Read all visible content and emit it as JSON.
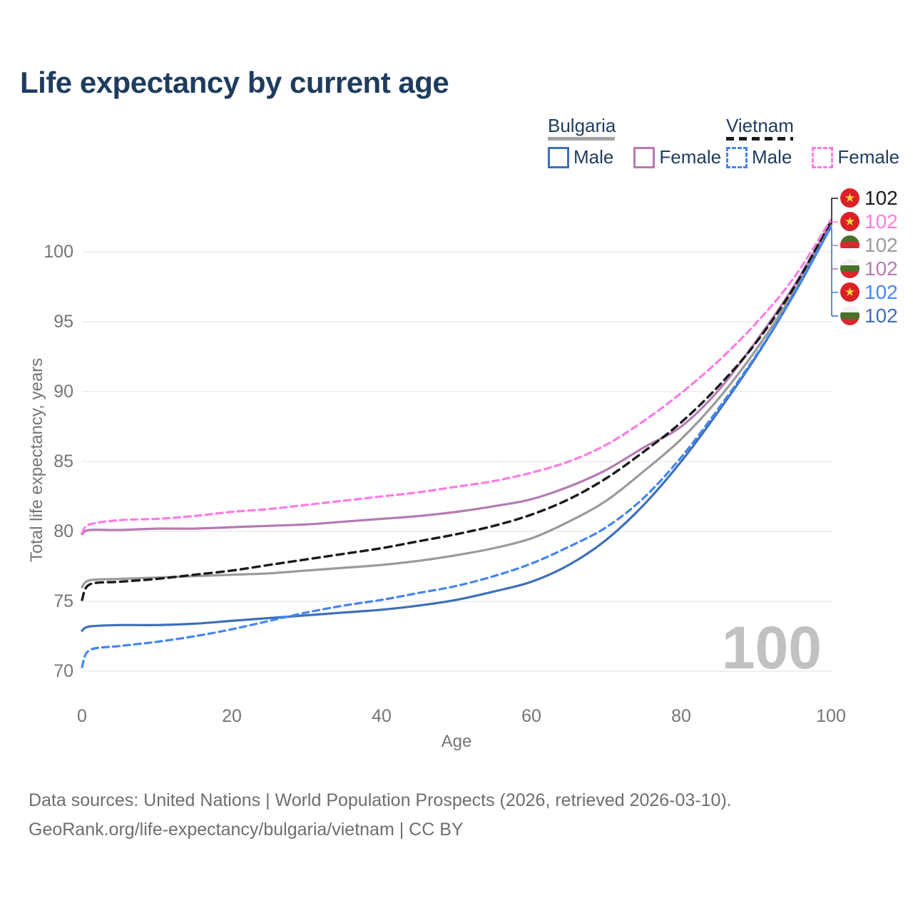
{
  "title": "Life expectancy by current age",
  "legend": {
    "groups": [
      {
        "country": "Bulgaria",
        "line_style": "solid",
        "items": [
          {
            "label": "Male",
            "color": "#3e70b7"
          },
          {
            "label": "Female",
            "color": "#b57ab4"
          }
        ]
      },
      {
        "country": "Vietnam",
        "line_style": "dashed",
        "items": [
          {
            "label": "Male",
            "color": "#4486f2"
          },
          {
            "label": "Female",
            "color": "#ff7ce3"
          }
        ]
      }
    ]
  },
  "end_labels": [
    {
      "country": "Vietnam",
      "value": "102",
      "color": "#1a1a1a"
    },
    {
      "country": "Vietnam",
      "value": "102",
      "color": "#ff7ce3"
    },
    {
      "country": "Bulgaria",
      "value": "102",
      "color": "#9a9a9a"
    },
    {
      "country": "Bulgaria",
      "value": "102",
      "color": "#b57ab4"
    },
    {
      "country": "Vietnam",
      "value": "102",
      "color": "#4486f2"
    },
    {
      "country": "Bulgaria",
      "value": "102",
      "color": "#3e70b7"
    }
  ],
  "watermark": "100",
  "axes": {
    "y_title": "Total life expectancy, years",
    "x_title": "Age"
  },
  "footer": {
    "line1": "Data sources: United Nations | World Population Prospects (2026, retrieved 2026-03-10).",
    "line2": "GeoRank.org/life-expectancy/bulgaria/vietnam | CC BY"
  },
  "chart_data": {
    "type": "line",
    "title": "Life expectancy by current age",
    "xlabel": "Age",
    "ylabel": "Total life expectancy, years",
    "xlim": [
      0,
      100
    ],
    "ylim": [
      69,
      103
    ],
    "x_ticks": [
      0,
      20,
      40,
      60,
      80,
      100
    ],
    "y_ticks": [
      70,
      75,
      80,
      85,
      90,
      95,
      100
    ],
    "grid": "horizontal",
    "legend_position": "top-right",
    "x": [
      0,
      1,
      5,
      10,
      15,
      20,
      25,
      30,
      35,
      40,
      45,
      50,
      55,
      60,
      65,
      70,
      75,
      80,
      85,
      90,
      95,
      100
    ],
    "series": [
      {
        "name": "Bulgaria Total",
        "color": "#9a9a9a",
        "dash": null,
        "width": 3.2,
        "values": [
          76.0,
          76.5,
          76.6,
          76.7,
          76.8,
          76.9,
          77.0,
          77.2,
          77.4,
          77.6,
          77.9,
          78.3,
          78.8,
          79.5,
          80.7,
          82.2,
          84.3,
          86.6,
          89.5,
          93.0,
          97.1,
          101.9
        ]
      },
      {
        "name": "Bulgaria Female",
        "color": "#b57ab4",
        "dash": null,
        "width": 3.2,
        "values": [
          79.8,
          80.1,
          80.1,
          80.2,
          80.2,
          80.3,
          80.4,
          80.5,
          80.7,
          80.9,
          81.1,
          81.4,
          81.8,
          82.3,
          83.2,
          84.4,
          86.0,
          87.5,
          90.1,
          93.6,
          97.5,
          102.1
        ]
      },
      {
        "name": "Bulgaria Male",
        "color": "#3e70b7",
        "dash": null,
        "width": 3.2,
        "values": [
          72.9,
          73.2,
          73.3,
          73.3,
          73.4,
          73.6,
          73.8,
          74.0,
          74.2,
          74.4,
          74.7,
          75.1,
          75.7,
          76.4,
          77.6,
          79.4,
          81.9,
          85.0,
          88.6,
          92.5,
          96.9,
          101.8
        ]
      },
      {
        "name": "Vietnam Total",
        "color": "#1a1a1a",
        "dash": "10 7",
        "width": 3.4,
        "values": [
          75.1,
          76.2,
          76.4,
          76.6,
          76.9,
          77.2,
          77.6,
          78.0,
          78.4,
          78.8,
          79.3,
          79.8,
          80.4,
          81.2,
          82.3,
          83.8,
          85.7,
          87.8,
          90.4,
          93.5,
          97.4,
          102.2
        ]
      },
      {
        "name": "Vietnam Female",
        "color": "#ff7ce3",
        "dash": "9 6",
        "width": 3.2,
        "values": [
          79.9,
          80.5,
          80.8,
          80.9,
          81.1,
          81.4,
          81.6,
          81.9,
          82.2,
          82.5,
          82.8,
          83.2,
          83.6,
          84.2,
          85.0,
          86.2,
          87.9,
          89.9,
          92.2,
          94.9,
          98.1,
          102.3
        ]
      },
      {
        "name": "Vietnam Male",
        "color": "#4486f2",
        "dash": "9 6",
        "width": 3.2,
        "values": [
          70.3,
          71.5,
          71.8,
          72.1,
          72.5,
          73.0,
          73.6,
          74.2,
          74.7,
          75.1,
          75.6,
          76.1,
          76.8,
          77.7,
          78.9,
          80.3,
          82.4,
          85.3,
          88.8,
          92.6,
          96.9,
          101.8
        ]
      }
    ]
  }
}
